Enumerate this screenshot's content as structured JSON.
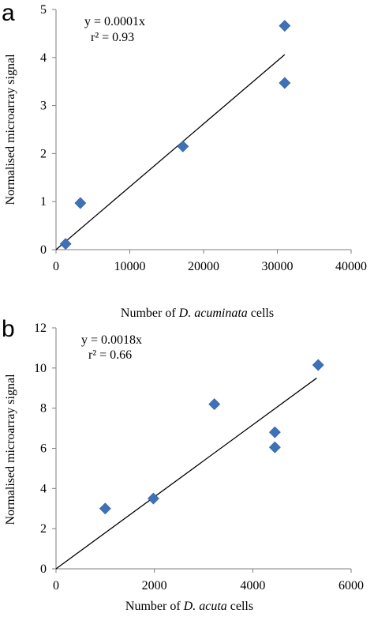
{
  "chart_data": [
    {
      "panel": "a",
      "type": "scatter",
      "points": [
        {
          "x": 1300,
          "y": 0.12
        },
        {
          "x": 3300,
          "y": 0.97
        },
        {
          "x": 17200,
          "y": 2.15
        },
        {
          "x": 31000,
          "y": 4.66
        },
        {
          "x": 31000,
          "y": 3.47
        }
      ],
      "trendline": {
        "equation": "y = 0.0001x",
        "r2": "r² = 0.93",
        "x": [
          0,
          31000
        ],
        "y": [
          0,
          4.06
        ]
      },
      "xlabel_prefix": "Number of ",
      "xlabel_species": "D. acuminata",
      "xlabel_suffix": " cells",
      "ylabel": "Normalised microarray signal",
      "xlim": [
        0,
        40000
      ],
      "ylim": [
        0,
        5
      ],
      "xticks": [
        "0",
        "10000",
        "20000",
        "30000",
        "40000"
      ],
      "yticks": [
        "0",
        "1",
        "2",
        "3",
        "4",
        "5"
      ],
      "marker_color": "#3e72b8",
      "grid": false
    },
    {
      "panel": "b",
      "type": "scatter",
      "points": [
        {
          "x": 1000,
          "y": 3.0
        },
        {
          "x": 1980,
          "y": 3.5
        },
        {
          "x": 3220,
          "y": 8.2
        },
        {
          "x": 4450,
          "y": 6.8
        },
        {
          "x": 4450,
          "y": 6.05
        },
        {
          "x": 5330,
          "y": 10.15
        }
      ],
      "trendline": {
        "equation": "y = 0.0018x",
        "r2": "r² = 0.66",
        "x": [
          0,
          5300
        ],
        "y": [
          0,
          9.5
        ]
      },
      "xlabel_prefix": "Number of ",
      "xlabel_species": "D. acuta",
      "xlabel_suffix": " cells",
      "ylabel": "Normalised microarray signal",
      "xlim": [
        0,
        6000
      ],
      "ylim": [
        0,
        12
      ],
      "xticks": [
        "0",
        "2000",
        "4000",
        "6000"
      ],
      "yticks": [
        "0",
        "2",
        "4",
        "6",
        "8",
        "10",
        "12"
      ],
      "marker_color": "#3e72b8",
      "grid": false
    }
  ]
}
